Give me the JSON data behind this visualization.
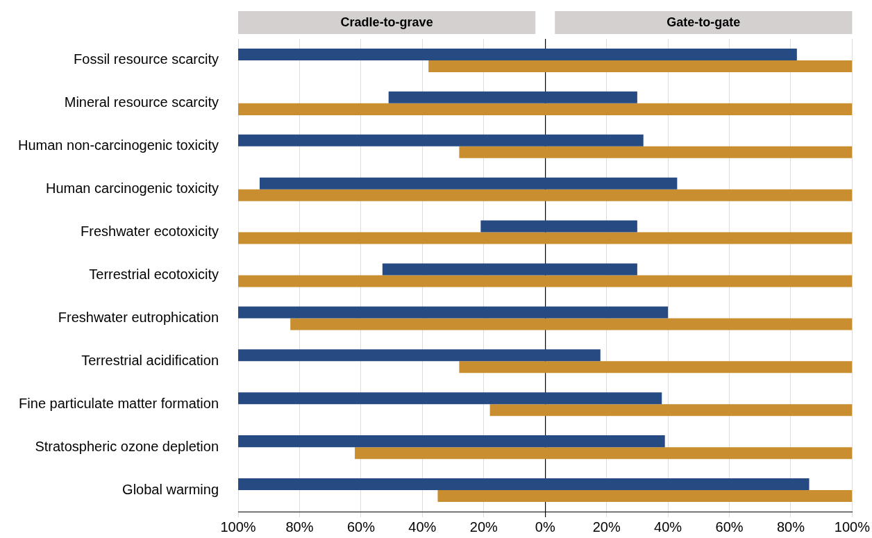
{
  "chart_data": {
    "type": "bar",
    "orientation": "horizontal",
    "categories": [
      "Fossil resource scarcity",
      "Mineral resource scarcity",
      "Human non-carcinogenic toxicity",
      "Human carcinogenic toxicity",
      "Freshwater ecotoxicity",
      "Terrestrial ecotoxicity",
      "Freshwater eutrophication",
      "Terrestrial acidification",
      "Fine particulate matter formation",
      "Stratospheric ozone depletion",
      "Global warming"
    ],
    "series": [
      {
        "color": "#264b82",
        "base": [
          -100,
          -51,
          -100,
          -93,
          -21,
          -53,
          -100,
          -100,
          -100,
          -100,
          -100
        ],
        "values": [
          182,
          81,
          132,
          136,
          51,
          83,
          140,
          118,
          138,
          139,
          186
        ]
      },
      {
        "color": "#c98e2f",
        "base": [
          -38,
          -100,
          -28,
          -100,
          -100,
          -100,
          -83,
          -28,
          -18,
          -62,
          -35
        ],
        "values": [
          138,
          200,
          128,
          200,
          200,
          200,
          183,
          128,
          118,
          162,
          135
        ]
      }
    ],
    "xlim": [
      -100,
      100
    ],
    "xticks": [
      {
        "value": -100,
        "label": "100%"
      },
      {
        "value": -80,
        "label": "80%"
      },
      {
        "value": -60,
        "label": "60%"
      },
      {
        "value": -40,
        "label": "40%"
      },
      {
        "value": -20,
        "label": "20%"
      },
      {
        "value": 0,
        "label": "0%"
      },
      {
        "value": 20,
        "label": "20%"
      },
      {
        "value": 40,
        "label": "40%"
      },
      {
        "value": 60,
        "label": "60%"
      },
      {
        "value": 80,
        "label": "80%"
      },
      {
        "value": 100,
        "label": "100%"
      }
    ],
    "annotations": [
      "Cradle-to-grave",
      "Gate-to-gate"
    ],
    "grid": "x",
    "legend": false
  }
}
